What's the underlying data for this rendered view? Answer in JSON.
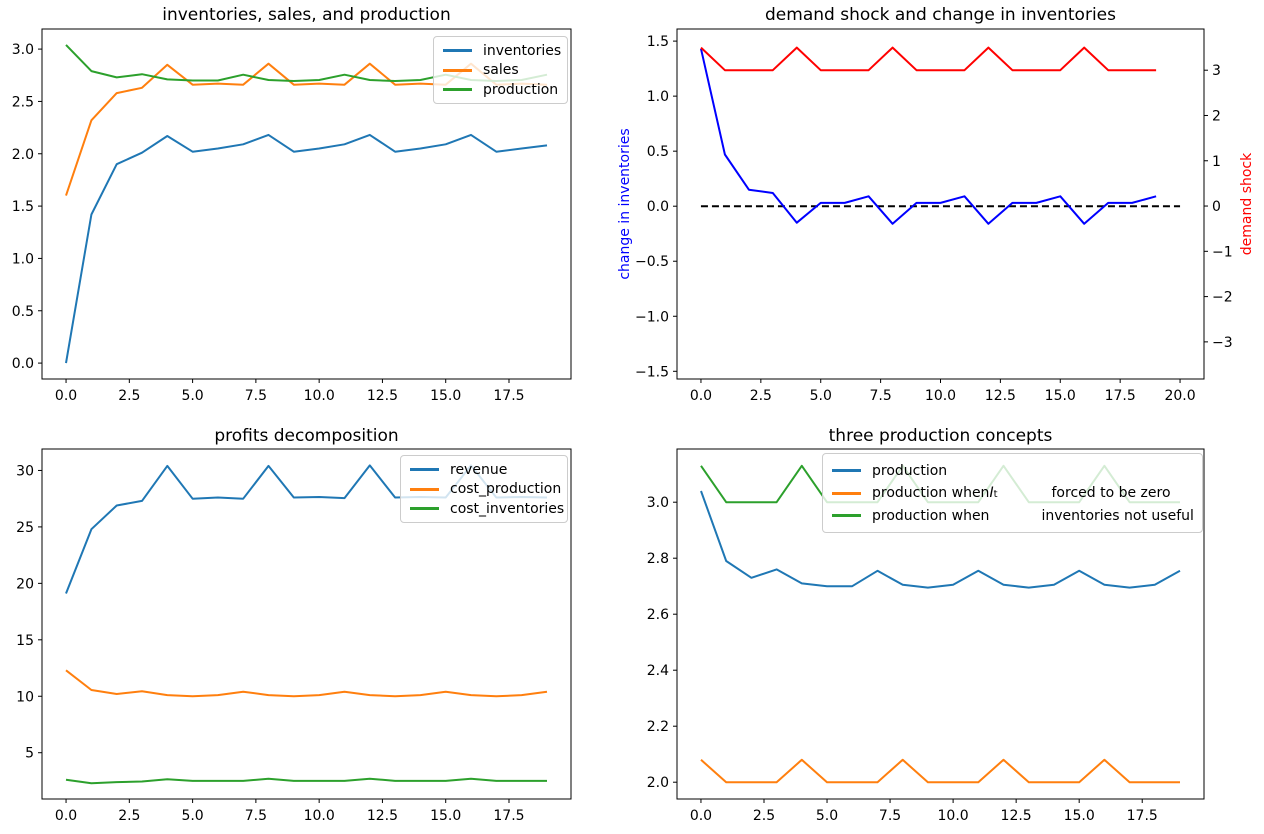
{
  "figure": {
    "background": "#ffffff"
  },
  "colors": {
    "tab_blue": "#1f77b4",
    "tab_orange": "#ff7f0e",
    "tab_green": "#2ca02c",
    "pure_blue": "#0000ff",
    "pure_red": "#ff0000",
    "black": "#000000"
  },
  "chart_data": [
    {
      "id": "top-left",
      "type": "line",
      "title": "inventories, sales, and production",
      "xlabel": "",
      "ylabel": "",
      "x": [
        0,
        1,
        2,
        3,
        4,
        5,
        6,
        7,
        8,
        9,
        10,
        11,
        12,
        13,
        14,
        15,
        16,
        17,
        18,
        19
      ],
      "xlim": [
        -0.95,
        19.95
      ],
      "ylim": [
        -0.152,
        3.192
      ],
      "xticks": {
        "values": [
          0,
          2.5,
          5,
          7.5,
          10,
          12.5,
          15,
          17.5
        ],
        "labels": [
          "0.0",
          "2.5",
          "5.0",
          "7.5",
          "10.0",
          "12.5",
          "15.0",
          "17.5"
        ]
      },
      "yticks": {
        "values": [
          0,
          0.5,
          1,
          1.5,
          2,
          2.5,
          3
        ],
        "labels": [
          "0.0",
          "0.5",
          "1.0",
          "1.5",
          "2.0",
          "2.5",
          "3.0"
        ]
      },
      "grid": false,
      "series": [
        {
          "key": "inventories",
          "name": "inventories",
          "color": "#1f77b4",
          "values": [
            0.0,
            1.42,
            1.9,
            2.01,
            2.17,
            2.02,
            2.05,
            2.09,
            2.18,
            2.02,
            2.05,
            2.09,
            2.18,
            2.02,
            2.05,
            2.09,
            2.18,
            2.02,
            2.05,
            2.08
          ]
        },
        {
          "key": "sales",
          "name": "sales",
          "color": "#ff7f0e",
          "values": [
            1.6,
            2.32,
            2.58,
            2.63,
            2.85,
            2.66,
            2.67,
            2.66,
            2.86,
            2.66,
            2.67,
            2.66,
            2.86,
            2.66,
            2.67,
            2.66,
            2.86,
            2.66,
            2.67,
            2.66
          ]
        },
        {
          "key": "production",
          "name": "production",
          "color": "#2ca02c",
          "values": [
            3.04,
            2.79,
            2.73,
            2.76,
            2.71,
            2.7,
            2.7,
            2.755,
            2.705,
            2.695,
            2.705,
            2.755,
            2.705,
            2.695,
            2.705,
            2.755,
            2.705,
            2.695,
            2.705,
            2.755
          ]
        }
      ],
      "legend": {
        "position": "upper right",
        "entries": [
          {
            "color": "#1f77b4",
            "segments": [
              {
                "text": "inventories"
              }
            ]
          },
          {
            "color": "#ff7f0e",
            "segments": [
              {
                "text": "sales"
              }
            ]
          },
          {
            "color": "#2ca02c",
            "segments": [
              {
                "text": "production"
              }
            ]
          }
        ]
      },
      "layout": {
        "axes_rect": [
          42,
          29,
          529,
          350
        ],
        "legend_rect": [
          433,
          36,
          135,
          68
        ]
      }
    },
    {
      "id": "top-right",
      "type": "line",
      "title": "demand shock and change in inventories",
      "ylabel_left": {
        "text": "change in inventories",
        "color": "#0000ff"
      },
      "ylabel_right": {
        "text": "demand shock",
        "color": "#ff0000"
      },
      "x": [
        0,
        1,
        2,
        3,
        4,
        5,
        6,
        7,
        8,
        9,
        10,
        11,
        12,
        13,
        14,
        15,
        16,
        17,
        18,
        19
      ],
      "xlim": [
        -1,
        21
      ],
      "ylim_left": [
        -1.57,
        1.61
      ],
      "ylim_right": [
        -3.82,
        3.91
      ],
      "xticks": {
        "values": [
          0,
          2.5,
          5,
          7.5,
          10,
          12.5,
          15,
          17.5,
          20
        ],
        "labels": [
          "0.0",
          "2.5",
          "5.0",
          "7.5",
          "10.0",
          "12.5",
          "15.0",
          "17.5",
          "20.0"
        ]
      },
      "yticks_left": {
        "values": [
          -1.5,
          -1,
          -0.5,
          0,
          0.5,
          1,
          1.5
        ],
        "labels": [
          "−1.5",
          "−1.0",
          "−0.5",
          "0.0",
          "0.5",
          "1.0",
          "1.5"
        ]
      },
      "yticks_right": {
        "values": [
          -3,
          -2,
          -1,
          0,
          1,
          2,
          3
        ],
        "labels": [
          "−3",
          "−2",
          "−1",
          "0",
          "1",
          "2",
          "3"
        ]
      },
      "grid": false,
      "hline": {
        "y": 0,
        "x0": 0,
        "x1": 20,
        "style": "dashed",
        "color": "#000000"
      },
      "series": [
        {
          "key": "change-in-inventories",
          "name": "change in inventories",
          "axis": "left",
          "color": "#0000ff",
          "values": [
            1.43,
            0.47,
            0.15,
            0.12,
            -0.15,
            0.03,
            0.03,
            0.09,
            -0.16,
            0.03,
            0.03,
            0.09,
            -0.16,
            0.03,
            0.03,
            0.09,
            -0.16,
            0.03,
            0.03,
            0.09
          ]
        },
        {
          "key": "demand-shock",
          "name": "demand shock",
          "axis": "right",
          "color": "#ff0000",
          "values": [
            3.5,
            3,
            3,
            3,
            3.5,
            3,
            3,
            3,
            3.5,
            3,
            3,
            3,
            3.5,
            3,
            3,
            3,
            3.5,
            3,
            3,
            3
          ]
        }
      ],
      "layout": {
        "axes_rect": [
          677,
          29,
          527,
          350
        ]
      }
    },
    {
      "id": "bottom-left",
      "type": "line",
      "title": "profits decomposition",
      "x": [
        0,
        1,
        2,
        3,
        4,
        5,
        6,
        7,
        8,
        9,
        10,
        11,
        12,
        13,
        14,
        15,
        16,
        17,
        18,
        19
      ],
      "xlim": [
        -0.95,
        19.95
      ],
      "ylim": [
        0.9,
        31.9
      ],
      "xticks": {
        "values": [
          0,
          2.5,
          5,
          7.5,
          10,
          12.5,
          15,
          17.5
        ],
        "labels": [
          "0.0",
          "2.5",
          "5.0",
          "7.5",
          "10.0",
          "12.5",
          "15.0",
          "17.5"
        ]
      },
      "yticks": {
        "values": [
          5,
          10,
          15,
          20,
          25,
          30
        ],
        "labels": [
          "5",
          "10",
          "15",
          "20",
          "25",
          "30"
        ]
      },
      "grid": false,
      "series": [
        {
          "key": "revenue",
          "name": "revenue",
          "color": "#1f77b4",
          "values": [
            19.1,
            24.8,
            26.9,
            27.3,
            30.4,
            27.5,
            27.6,
            27.5,
            30.4,
            27.6,
            27.65,
            27.55,
            30.45,
            27.6,
            27.65,
            27.6,
            30.45,
            27.6,
            27.65,
            27.6
          ]
        },
        {
          "key": "cost-production",
          "name": "cost_production",
          "color": "#ff7f0e",
          "values": [
            12.3,
            10.55,
            10.2,
            10.45,
            10.1,
            10.0,
            10.1,
            10.4,
            10.1,
            10.0,
            10.1,
            10.4,
            10.1,
            10.0,
            10.1,
            10.4,
            10.1,
            10.0,
            10.1,
            10.4
          ]
        },
        {
          "key": "cost-inventories",
          "name": "cost_inventories",
          "color": "#2ca02c",
          "values": [
            2.6,
            2.3,
            2.4,
            2.45,
            2.65,
            2.5,
            2.5,
            2.5,
            2.7,
            2.5,
            2.5,
            2.5,
            2.7,
            2.5,
            2.5,
            2.5,
            2.7,
            2.5,
            2.5,
            2.5
          ]
        }
      ],
      "legend": {
        "position": "upper right",
        "entries": [
          {
            "color": "#1f77b4",
            "segments": [
              {
                "text": "revenue"
              }
            ]
          },
          {
            "color": "#ff7f0e",
            "segments": [
              {
                "text": "cost_production"
              }
            ]
          },
          {
            "color": "#2ca02c",
            "segments": [
              {
                "text": "cost_inventories"
              }
            ]
          }
        ]
      },
      "layout": {
        "axes_rect": [
          42,
          449,
          529,
          350
        ],
        "legend_rect": [
          400,
          455,
          168,
          68
        ]
      }
    },
    {
      "id": "bottom-right",
      "type": "line",
      "title": "three production concepts",
      "x": [
        0,
        1,
        2,
        3,
        4,
        5,
        6,
        7,
        8,
        9,
        10,
        11,
        12,
        13,
        14,
        15,
        16,
        17,
        18,
        19
      ],
      "xlim": [
        -0.95,
        19.95
      ],
      "ylim": [
        1.94,
        3.19
      ],
      "xticks": {
        "values": [
          0,
          2.5,
          5,
          7.5,
          10,
          12.5,
          15,
          17.5
        ],
        "labels": [
          "0.0",
          "2.5",
          "5.0",
          "7.5",
          "10.0",
          "12.5",
          "15.0",
          "17.5"
        ]
      },
      "yticks": {
        "values": [
          2.0,
          2.2,
          2.4,
          2.6,
          2.8,
          3.0
        ],
        "labels": [
          "2.0",
          "2.2",
          "2.4",
          "2.6",
          "2.8",
          "3.0"
        ]
      },
      "grid": false,
      "series": [
        {
          "key": "production",
          "name": "production",
          "color": "#1f77b4",
          "values": [
            3.04,
            2.79,
            2.73,
            2.76,
            2.71,
            2.7,
            2.7,
            2.755,
            2.705,
            2.695,
            2.705,
            2.755,
            2.705,
            2.695,
            2.705,
            2.755,
            2.705,
            2.695,
            2.705,
            2.755
          ]
        },
        {
          "key": "production-inventories-forced-zero",
          "name": "production when I_t forced to be zero",
          "color": "#ff7f0e",
          "values": [
            2.08,
            2.0,
            2.0,
            2.0,
            2.08,
            2.0,
            2.0,
            2.0,
            2.08,
            2.0,
            2.0,
            2.0,
            2.08,
            2.0,
            2.0,
            2.0,
            2.08,
            2.0,
            2.0,
            2.0
          ]
        },
        {
          "key": "production-inventories-not-useful",
          "name": "production when inventories not useful",
          "color": "#2ca02c",
          "values": [
            3.13,
            3.0,
            3.0,
            3.0,
            3.13,
            3.0,
            3.0,
            3.0,
            3.13,
            3.0,
            3.0,
            3.0,
            3.13,
            3.0,
            3.0,
            3.0,
            3.13,
            3.0,
            3.0,
            3.0
          ]
        }
      ],
      "legend": {
        "position": "upper center",
        "entries": [
          {
            "color": "#1f77b4",
            "segments": [
              {
                "text": "production"
              }
            ]
          },
          {
            "color": "#ff7f0e",
            "segments": [
              {
                "text": "production when "
              },
              {
                "text": "I",
                "style": "math"
              },
              {
                "text": "t",
                "style": "sub"
              },
              {
                "text": "forced to be zero",
                "gap_before": 54
              }
            ]
          },
          {
            "color": "#2ca02c",
            "segments": [
              {
                "text": "production when"
              },
              {
                "text": "inventories not useful",
                "gap_before": 52
              }
            ]
          }
        ]
      },
      "layout": {
        "axes_rect": [
          677,
          449,
          527,
          350
        ],
        "legend_rect": [
          822,
          453,
          381,
          80
        ]
      }
    }
  ]
}
